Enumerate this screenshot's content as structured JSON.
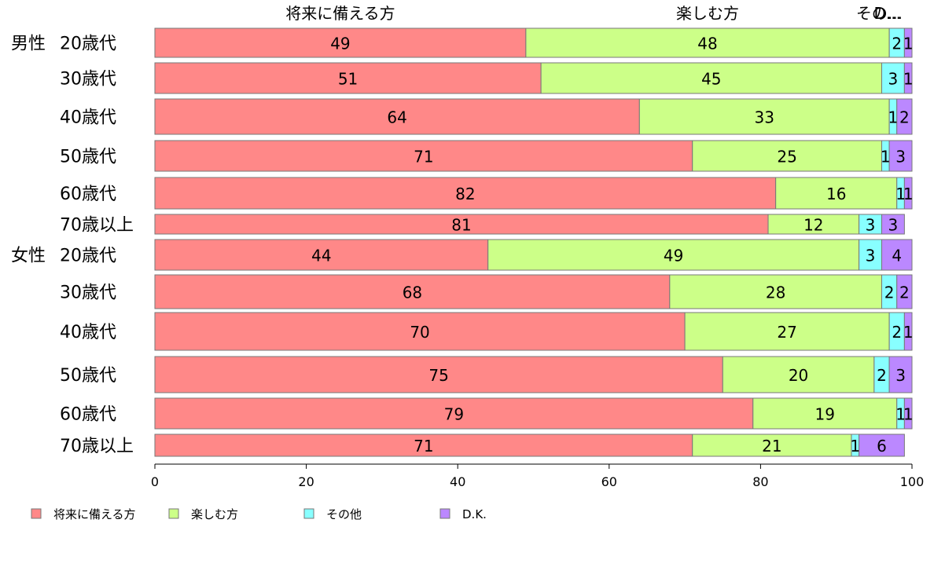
{
  "chart_data": {
    "type": "bar",
    "orientation": "horizontal",
    "stacked": true,
    "series": [
      {
        "name": "将来に備える方",
        "color": "#ff8888",
        "values": [
          49,
          51,
          64,
          71,
          82,
          81,
          44,
          68,
          70,
          75,
          79,
          71
        ]
      },
      {
        "name": "楽しむ方",
        "color": "#ccff88",
        "values": [
          48,
          45,
          33,
          25,
          16,
          12,
          49,
          28,
          27,
          20,
          19,
          21
        ]
      },
      {
        "name": "その他",
        "color": "#88ffff",
        "values": [
          2,
          3,
          1,
          1,
          1,
          3,
          3,
          2,
          2,
          2,
          1,
          1
        ]
      },
      {
        "name": "D.K.",
        "color": "#bb88ff",
        "values": [
          1,
          1,
          2,
          3,
          1,
          3,
          4,
          2,
          1,
          3,
          1,
          6
        ]
      }
    ],
    "groups": [
      {
        "label": "男性",
        "categories": [
          "20歳代",
          "30歳代",
          "40歳代",
          "50歳代",
          "60歳代",
          "70歳以上"
        ]
      },
      {
        "label": "女性",
        "categories": [
          "20歳代",
          "30歳代",
          "40歳代",
          "50歳代",
          "60歳代",
          "70歳以上"
        ]
      }
    ],
    "top_labels": [
      "将来に備える方",
      "楽しむ方",
      "その...",
      "D..."
    ],
    "xlim": [
      0,
      100
    ],
    "xticks": [
      "0",
      "20",
      "40",
      "60",
      "80",
      "100"
    ],
    "legend_position": "bottom-left",
    "grid": false
  }
}
